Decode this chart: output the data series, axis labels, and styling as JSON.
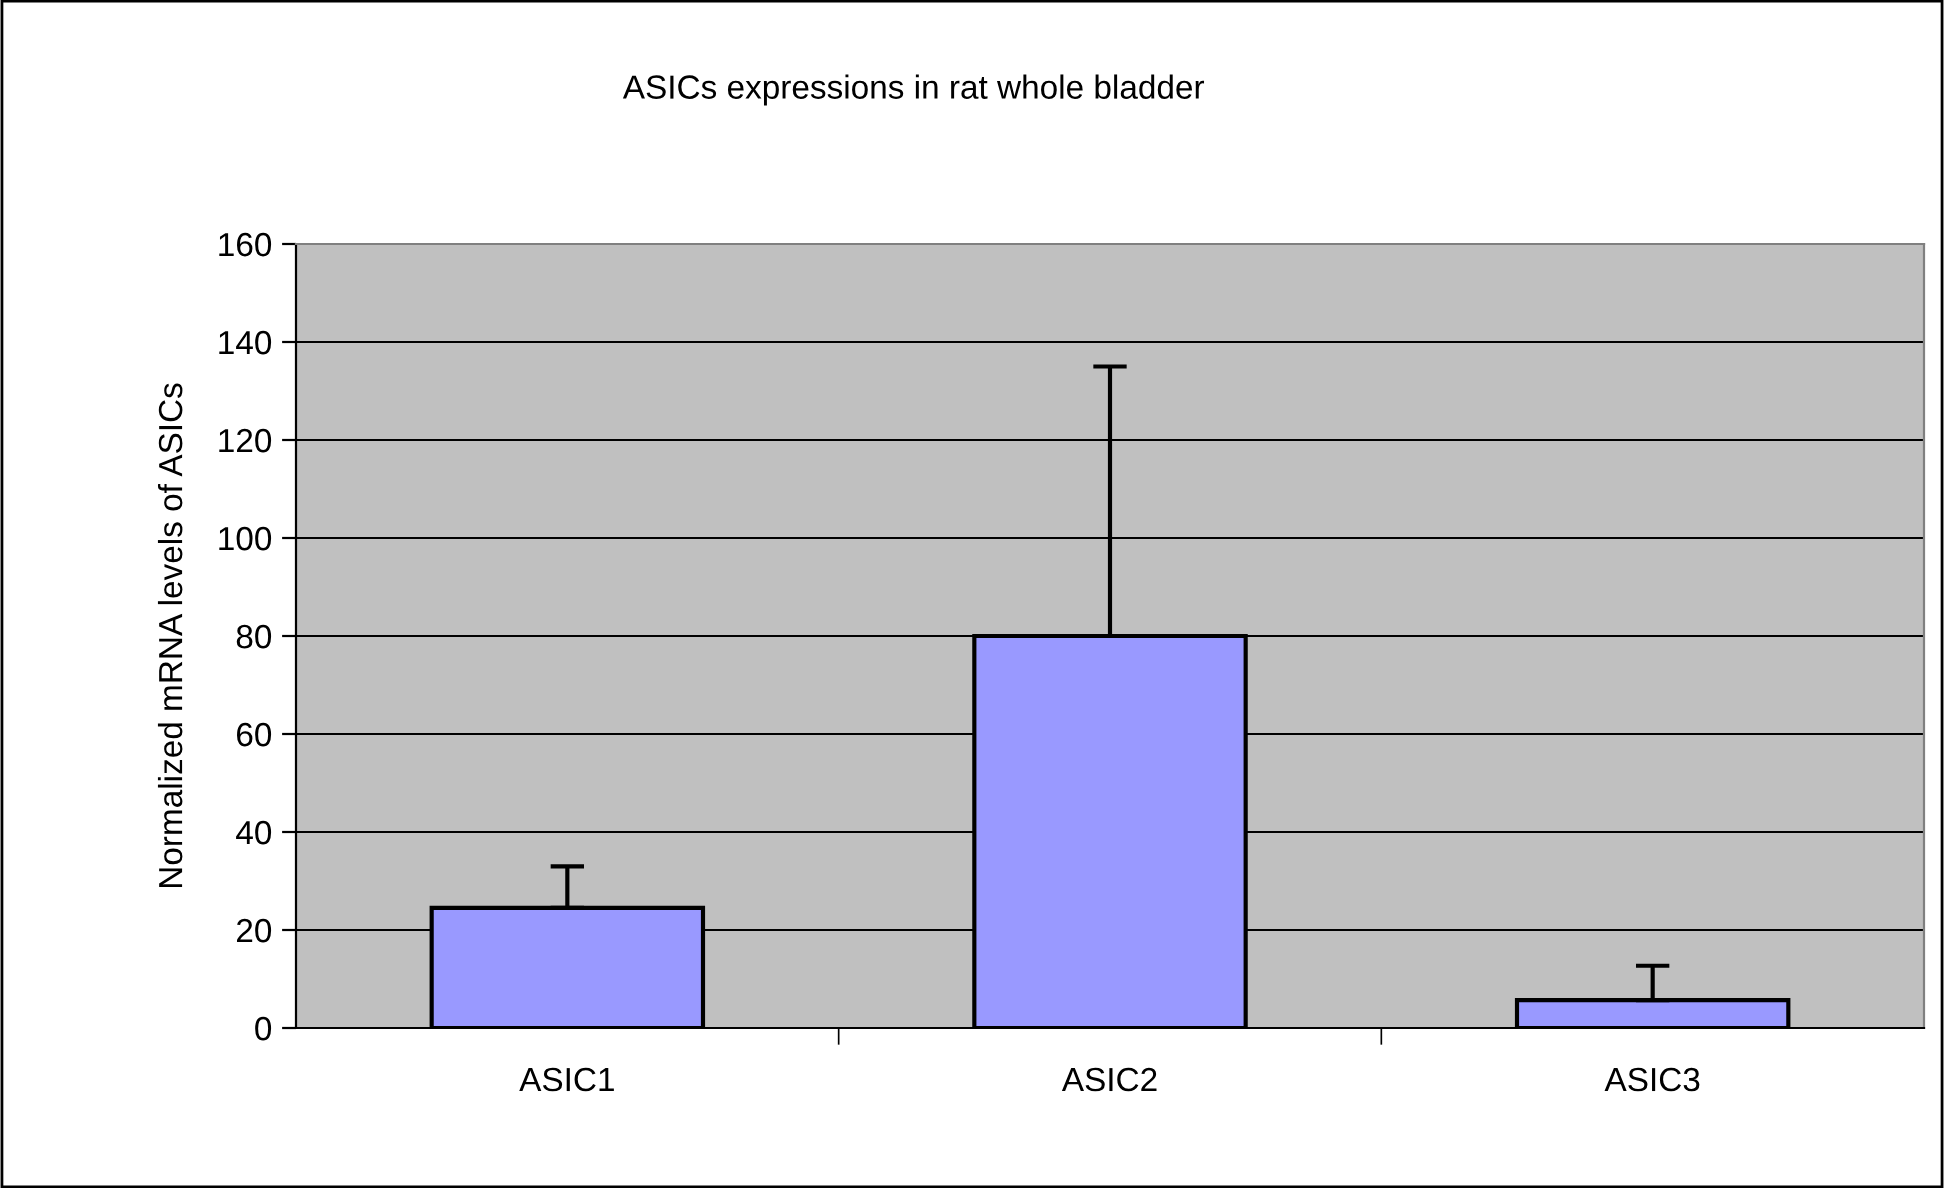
{
  "chart_data": {
    "type": "bar",
    "title": "ASICs expressions in rat whole bladder",
    "ylabel": "Normalized mRNA levels of ASICs",
    "categories": [
      "ASIC1",
      "ASIC2",
      "ASIC3"
    ],
    "values": [
      24.5,
      80,
      5.7
    ],
    "errors": [
      [
        24.5,
        33
      ],
      [
        80,
        135
      ],
      [
        5.7,
        12.7
      ]
    ],
    "color": "#9999ff",
    "ylim": [
      0,
      160
    ],
    "yticks": [
      0,
      20,
      40,
      60,
      80,
      100,
      120,
      140,
      160
    ],
    "grid": "y",
    "legend": false
  }
}
